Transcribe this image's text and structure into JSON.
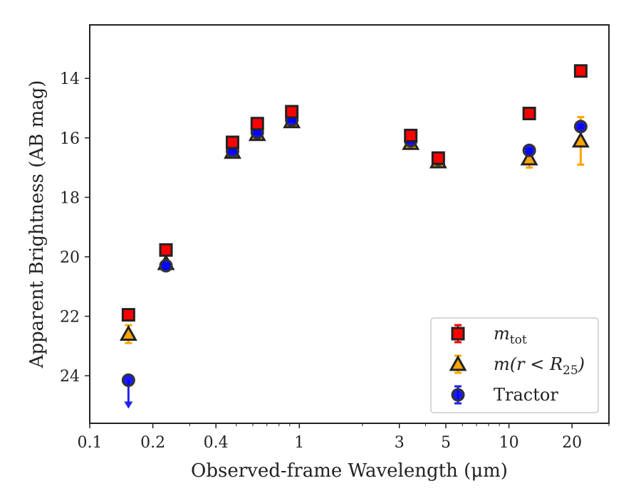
{
  "chart_data": {
    "type": "scatter",
    "xlabel": "Observed-frame Wavelength (μm)",
    "ylabel": "Apparent Brightness (AB mag)",
    "x_scale": "log",
    "xlim": [
      0.1,
      30
    ],
    "ylim": [
      25.6,
      12.2
    ],
    "y_inverted": true,
    "x_ticks": [
      {
        "value": 0.1,
        "label": "0.1"
      },
      {
        "value": 0.2,
        "label": "0.2"
      },
      {
        "value": 0.4,
        "label": "0.4"
      },
      {
        "value": 1,
        "label": "1"
      },
      {
        "value": 3,
        "label": "3"
      },
      {
        "value": 5,
        "label": "5"
      },
      {
        "value": 10,
        "label": "10"
      },
      {
        "value": 20,
        "label": "20"
      }
    ],
    "y_ticks": [
      {
        "value": 14,
        "label": "14"
      },
      {
        "value": 16,
        "label": "16"
      },
      {
        "value": 18,
        "label": "18"
      },
      {
        "value": 20,
        "label": "20"
      },
      {
        "value": 22,
        "label": "22"
      },
      {
        "value": 24,
        "label": "24"
      }
    ],
    "grid": false,
    "legend_position": "lower-right",
    "series": [
      {
        "name": "m_tot",
        "marker": "square",
        "color": "#ff0000",
        "edge_color": "#222222",
        "err_color": "#ff0000",
        "points": [
          {
            "x": 0.153,
            "y": 21.95,
            "err": 0.08
          },
          {
            "x": 0.231,
            "y": 19.77,
            "err": 0.05
          },
          {
            "x": 0.48,
            "y": 16.15,
            "err": 0.05
          },
          {
            "x": 0.63,
            "y": 15.52,
            "err": 0.05
          },
          {
            "x": 0.92,
            "y": 15.12,
            "err": 0.05
          },
          {
            "x": 3.4,
            "y": 15.92,
            "err": 0.05
          },
          {
            "x": 4.6,
            "y": 16.68,
            "err": 0.05
          },
          {
            "x": 12.5,
            "y": 15.18,
            "err": 0.05
          },
          {
            "x": 22.0,
            "y": 13.75,
            "err": 0.05
          }
        ]
      },
      {
        "name": "m(r<R25)",
        "marker": "triangle",
        "color": "#ffa500",
        "edge_color": "#222222",
        "err_color": "#ffa500",
        "points": [
          {
            "x": 0.153,
            "y": 22.6,
            "err": 0.3
          },
          {
            "x": 0.231,
            "y": 20.22,
            "err": 0.1
          },
          {
            "x": 0.48,
            "y": 16.48,
            "err": 0.05
          },
          {
            "x": 0.63,
            "y": 15.88,
            "err": 0.05
          },
          {
            "x": 0.92,
            "y": 15.45,
            "err": 0.05
          },
          {
            "x": 3.4,
            "y": 16.18,
            "err": 0.05
          },
          {
            "x": 4.6,
            "y": 16.8,
            "err": 0.05
          },
          {
            "x": 12.5,
            "y": 16.7,
            "err": 0.3
          },
          {
            "x": 22.0,
            "y": 16.1,
            "err": 0.8
          }
        ]
      },
      {
        "name": "Tractor",
        "marker": "circle",
        "color": "#0000ff",
        "edge_color": "#333333",
        "err_color": "#2222ee",
        "points": [
          {
            "x": 0.153,
            "y": 24.15,
            "err": 0,
            "upper_limit": true
          },
          {
            "x": 0.231,
            "y": 20.3,
            "err": 0.05
          },
          {
            "x": 0.48,
            "y": 16.45,
            "err": 0.05
          },
          {
            "x": 0.63,
            "y": 15.82,
            "err": 0.05
          },
          {
            "x": 0.92,
            "y": 15.4,
            "err": 0.05
          },
          {
            "x": 3.4,
            "y": 16.1,
            "err": 0.05
          },
          {
            "x": 4.6,
            "y": 16.72,
            "err": 0.05
          },
          {
            "x": 12.5,
            "y": 16.42,
            "err": 0.05
          },
          {
            "x": 22.0,
            "y": 15.62,
            "err": 0.05
          }
        ]
      }
    ],
    "legend": [
      {
        "label": "m",
        "sub": "tot",
        "math": true
      },
      {
        "label": "m(r < R",
        "sub": "25",
        "tail": ")",
        "math": true
      },
      {
        "label": "Tractor",
        "math": false
      }
    ]
  }
}
